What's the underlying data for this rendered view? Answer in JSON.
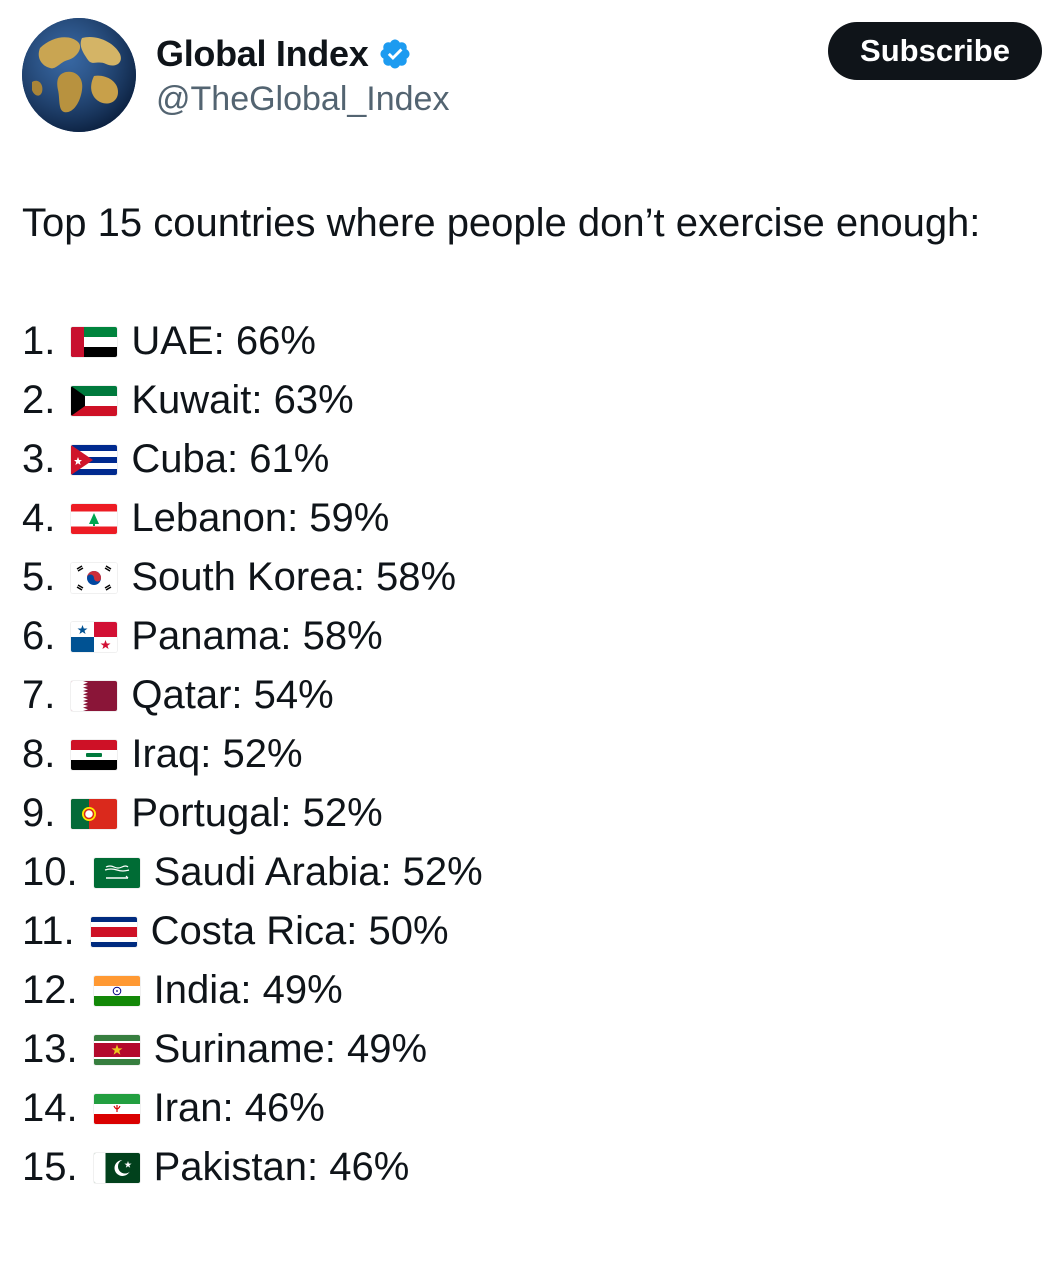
{
  "account": {
    "display_name": "Global Index",
    "handle": "@TheGlobal_Index",
    "avatar_icon": "globe-icon",
    "verified_icon": "verified-badge-icon",
    "verified_color": "#1d9bf0"
  },
  "subscribe_label": "Subscribe",
  "post": {
    "intro": "Top 15 countries where people don’t exercise enough:",
    "items": [
      {
        "rank": "1.",
        "text": "UAE: 66%",
        "flag": "uae-flag-icon"
      },
      {
        "rank": "2.",
        "text": "Kuwait: 63%",
        "flag": "kuwait-flag-icon"
      },
      {
        "rank": "3.",
        "text": "Cuba: 61%",
        "flag": "cuba-flag-icon"
      },
      {
        "rank": "4.",
        "text": "Lebanon: 59%",
        "flag": "lebanon-flag-icon"
      },
      {
        "rank": "5.",
        "text": "South Korea: 58%",
        "flag": "south-korea-flag-icon"
      },
      {
        "rank": "6.",
        "text": "Panama: 58%",
        "flag": "panama-flag-icon"
      },
      {
        "rank": "7.",
        "text": "Qatar: 54%",
        "flag": "qatar-flag-icon"
      },
      {
        "rank": "8.",
        "text": "Iraq: 52%",
        "flag": "iraq-flag-icon"
      },
      {
        "rank": "9.",
        "text": "Portugal: 52%",
        "flag": "portugal-flag-icon"
      },
      {
        "rank": "10.",
        "text": "Saudi Arabia: 52%",
        "flag": "saudi-arabia-flag-icon"
      },
      {
        "rank": "11.",
        "text": "Costa Rica: 50%",
        "flag": "costa-rica-flag-icon"
      },
      {
        "rank": "12.",
        "text": "India: 49%",
        "flag": "india-flag-icon"
      },
      {
        "rank": "13.",
        "text": "Suriname: 49%",
        "flag": "suriname-flag-icon"
      },
      {
        "rank": "14.",
        "text": "Iran: 46%",
        "flag": "iran-flag-icon"
      },
      {
        "rank": "15.",
        "text": "Pakistan: 46%",
        "flag": "pakistan-flag-icon"
      }
    ]
  }
}
